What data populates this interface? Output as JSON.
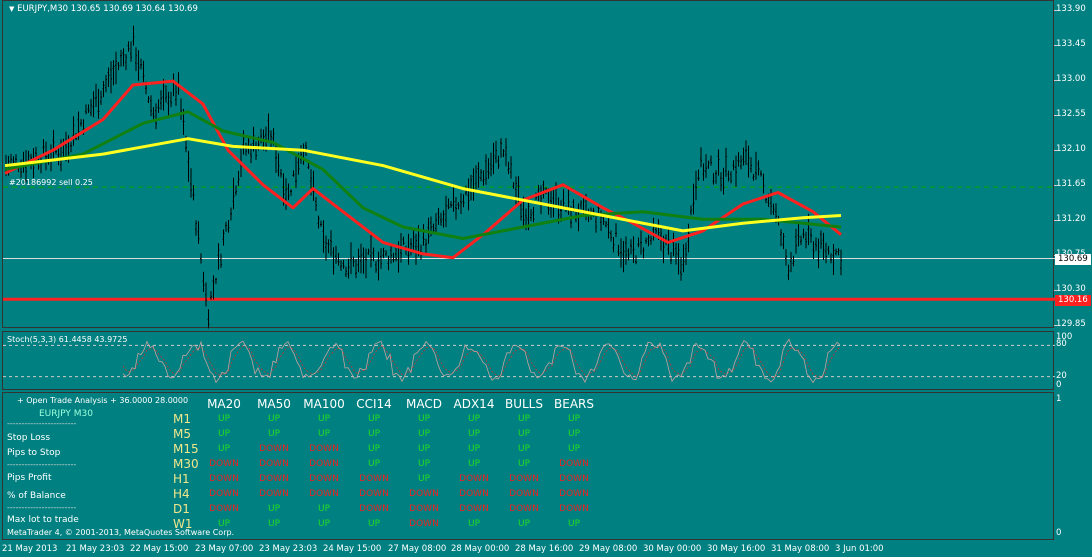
{
  "chart_header": {
    "arrow": "▼",
    "symbol": "EURJPY,M30",
    "ohlc": "130.65 130.69 130.64 130.69"
  },
  "order_label": "#20186992 sell 0.25",
  "price_axis": [
    "133.90",
    "133.45",
    "133.00",
    "132.55",
    "132.10",
    "131.65",
    "131.20",
    "130.75",
    "130.30",
    "129.85"
  ],
  "current_price": "130.69",
  "order_price": "130.16",
  "stoch": {
    "label": "Stoch(5,3,3) 61.4458 43.9725",
    "levels": [
      "100",
      "80",
      "20",
      "0"
    ]
  },
  "panel_axis": [
    "1",
    "0"
  ],
  "time_axis": [
    "21 May 2013",
    "21 May 23:03",
    "22 May 15:00",
    "23 May 07:00",
    "23 May 23:03",
    "24 May 15:00",
    "27 May 08:00",
    "28 May 00:00",
    "28 May 16:00",
    "29 May 08:00",
    "30 May 00:00",
    "30 May 16:00",
    "31 May 08:00",
    "3 Jun 01:00"
  ],
  "panel": {
    "title": "+ Open Trade Analysis + 36.0000 28.0000",
    "subtitle": "EURJPY  M30",
    "separator": "------------------------",
    "stop_loss": "Stop Loss",
    "pips_to_stop": "Pips to Stop",
    "pips_profit": "Pips Profit",
    "pct_balance": "% of Balance",
    "max_lot": "Max lot to trade",
    "copyright": "MetaTrader 4, © 2001-2013, MetaQuotes Software Corp."
  },
  "signal_table": {
    "columns": [
      "MA20",
      "MA50",
      "MA100",
      "CCI14",
      "MACD",
      "ADX14",
      "BULLS",
      "BEARS"
    ],
    "rows": [
      {
        "tf": "M1",
        "v": [
          "UP",
          "UP",
          "UP",
          "UP",
          "UP",
          "UP",
          "UP",
          "UP"
        ]
      },
      {
        "tf": "M5",
        "v": [
          "UP",
          "UP",
          "UP",
          "UP",
          "UP",
          "UP",
          "UP",
          "UP"
        ]
      },
      {
        "tf": "M15",
        "v": [
          "UP",
          "DOWN",
          "DOWN",
          "UP",
          "UP",
          "UP",
          "UP",
          "UP"
        ]
      },
      {
        "tf": "M30",
        "v": [
          "DOWN",
          "DOWN",
          "DOWN",
          "UP",
          "UP",
          "UP",
          "UP",
          "DOWN"
        ]
      },
      {
        "tf": "H1",
        "v": [
          "DOWN",
          "DOWN",
          "DOWN",
          "DOWN",
          "UP",
          "DOWN",
          "DOWN",
          "DOWN"
        ]
      },
      {
        "tf": "H4",
        "v": [
          "DOWN",
          "DOWN",
          "DOWN",
          "DOWN",
          "DOWN",
          "DOWN",
          "DOWN",
          "DOWN"
        ]
      },
      {
        "tf": "D1",
        "v": [
          "DOWN",
          "UP",
          "UP",
          "DOWN",
          "DOWN",
          "DOWN",
          "DOWN",
          "DOWN"
        ]
      },
      {
        "tf": "W1",
        "v": [
          "UP",
          "UP",
          "UP",
          "UP",
          "DOWN",
          "UP",
          "UP",
          "UP"
        ]
      }
    ]
  },
  "colors": {
    "background": "#008080",
    "ma_red": "#ff2020",
    "ma_green": "#108010",
    "ma_yellow": "#ffff20",
    "bars": "#000000",
    "up": "#22dd22",
    "down": "#ee2222",
    "tf_label": "#f0e68c"
  }
}
